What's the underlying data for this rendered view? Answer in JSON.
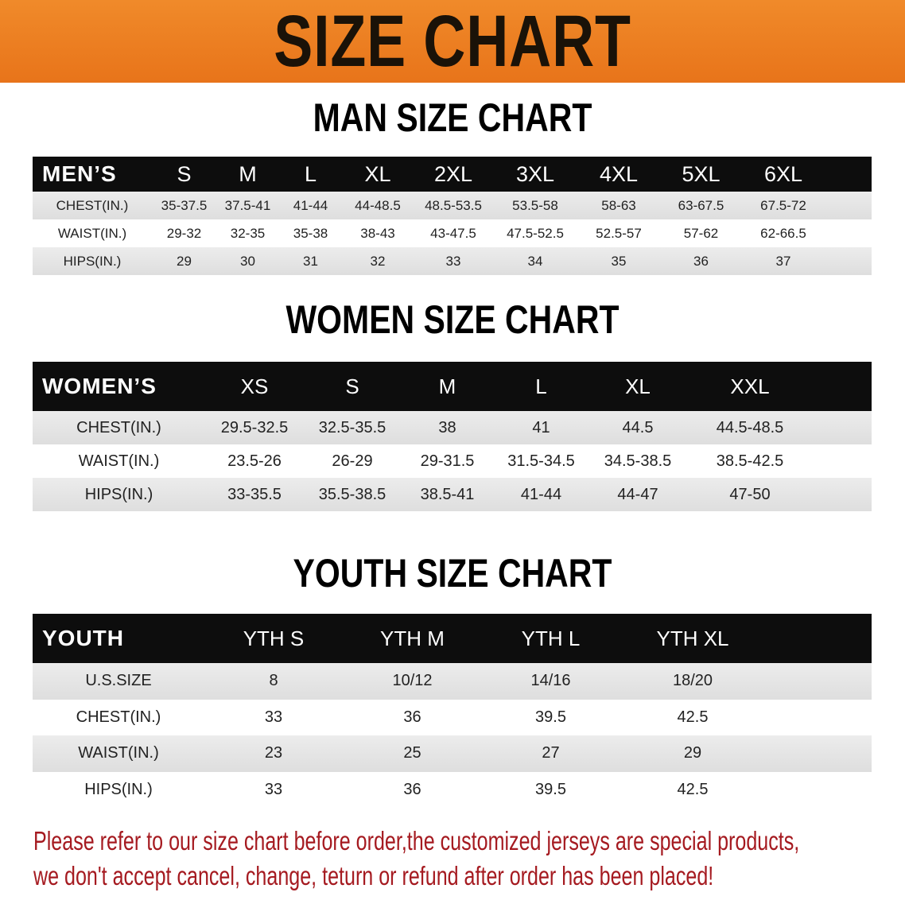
{
  "title": "SIZE CHART",
  "colors": {
    "banner": "#e8761a",
    "header_row": "#0d0d0d",
    "note": "#a51a20"
  },
  "men": {
    "heading": "MAN SIZE CHART",
    "header": [
      "MEN’S",
      "S",
      "M",
      "L",
      "XL",
      "2XL",
      "3XL",
      "4XL",
      "5XL",
      "6XL"
    ],
    "rows": [
      [
        "CHEST(IN.)",
        "35-37.5",
        "37.5-41",
        "41-44",
        "44-48.5",
        "48.5-53.5",
        "53.5-58",
        "58-63",
        "63-67.5",
        "67.5-72"
      ],
      [
        "WAIST(IN.)",
        "29-32",
        "32-35",
        "35-38",
        "38-43",
        "43-47.5",
        "47.5-52.5",
        "52.5-57",
        "57-62",
        "62-66.5"
      ],
      [
        "HIPS(IN.)",
        "29",
        "30",
        "31",
        "32",
        "33",
        "34",
        "35",
        "36",
        "37"
      ]
    ]
  },
  "women": {
    "heading": "WOMEN SIZE CHART",
    "header": [
      "WOMEN’S",
      "XS",
      "S",
      "M",
      "L",
      "XL",
      "XXL"
    ],
    "rows": [
      [
        "CHEST(IN.)",
        "29.5-32.5",
        "32.5-35.5",
        "38",
        "41",
        "44.5",
        "44.5-48.5"
      ],
      [
        "WAIST(IN.)",
        "23.5-26",
        "26-29",
        "29-31.5",
        "31.5-34.5",
        "34.5-38.5",
        "38.5-42.5"
      ],
      [
        "HIPS(IN.)",
        "33-35.5",
        "35.5-38.5",
        "38.5-41",
        "41-44",
        "44-47",
        "47-50"
      ]
    ]
  },
  "youth": {
    "heading": "YOUTH SIZE CHART",
    "header": [
      "YOUTH",
      "YTH S",
      "YTH M",
      "YTH L",
      "YTH XL"
    ],
    "rows": [
      [
        "U.S.SIZE",
        "8",
        "10/12",
        "14/16",
        "18/20"
      ],
      [
        "CHEST(IN.)",
        "33",
        "36",
        "39.5",
        "42.5"
      ],
      [
        "WAIST(IN.)",
        "23",
        "25",
        "27",
        "29"
      ],
      [
        "HIPS(IN.)",
        "33",
        "36",
        "39.5",
        "42.5"
      ]
    ]
  },
  "note": {
    "line1": "Please refer to our size chart before order,the customized jerseys are special products,",
    "line2": "we don't accept cancel, change, teturn or refund after order has been placed!"
  }
}
